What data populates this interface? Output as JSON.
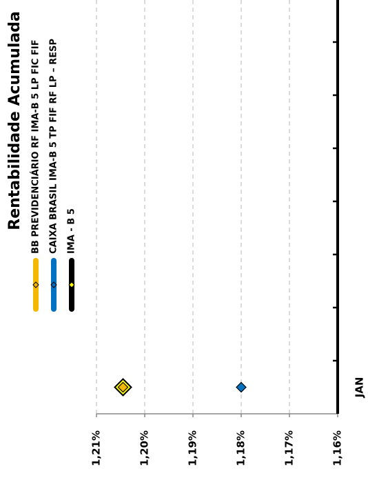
{
  "chart_data": {
    "type": "line",
    "title": "Rentabilidade Acumulada",
    "categories": [
      "JAN",
      null,
      null,
      null,
      null,
      null,
      null,
      null
    ],
    "series": [
      {
        "name": "BB PREVIDENCIÁRIO RF IMA-B 5 LP FIC FIF",
        "color": "#f5b800",
        "marker_color": "#f5b800",
        "values": [
          1.2045,
          null,
          null,
          null,
          null,
          null,
          null,
          null
        ]
      },
      {
        "name": "CAIXA BRASIL IMA-B 5 TP FIF RF LP – RESP",
        "color": "#0070c0",
        "marker_color": "#0070c0",
        "values": [
          1.18,
          null,
          null,
          null,
          null,
          null,
          null,
          null
        ]
      },
      {
        "name": "IMA - B 5",
        "color": "#000000",
        "marker_color": "#ffff00",
        "values": [
          1.2045,
          null,
          null,
          null,
          null,
          null,
          null,
          null
        ]
      }
    ],
    "ylim": [
      1.16,
      1.21
    ],
    "yticks": [
      {
        "value": 1.21,
        "label": "1,21%"
      },
      {
        "value": 1.2,
        "label": "1,20%"
      },
      {
        "value": 1.19,
        "label": "1,19%"
      },
      {
        "value": 1.18,
        "label": "1,18%"
      },
      {
        "value": 1.17,
        "label": "1,17%"
      },
      {
        "value": 1.16,
        "label": "1,16%"
      }
    ],
    "grid": true
  }
}
